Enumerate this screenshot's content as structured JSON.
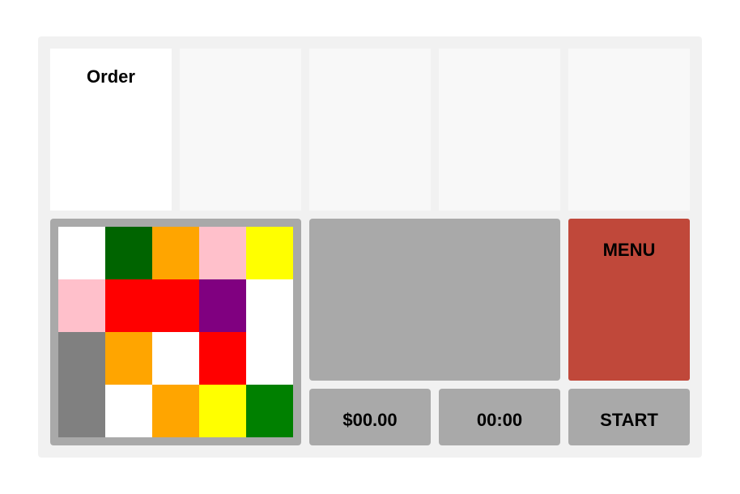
{
  "order_slots": [
    {
      "label": "Order"
    },
    {
      "label": ""
    },
    {
      "label": ""
    },
    {
      "label": ""
    },
    {
      "label": ""
    }
  ],
  "grid": {
    "rows": [
      [
        "white",
        "darkgreen",
        "orange",
        "pink",
        "yellow"
      ],
      [
        "pink",
        "red",
        "red",
        "purple",
        "white"
      ],
      [
        "gray",
        "orange",
        "white",
        "red",
        "white"
      ],
      [
        "gray",
        "white",
        "orange",
        "yellow",
        "green"
      ]
    ]
  },
  "colors": {
    "white": "#ffffff",
    "darkgreen": "#006400",
    "orange": "#ffa500",
    "pink": "#ffc0cb",
    "yellow": "#ffff00",
    "red": "#ff0000",
    "purple": "#800080",
    "gray": "#808080",
    "green": "#008000",
    "menu_accent": "#c0483a"
  },
  "controls": {
    "menu_label": "MENU",
    "money": "$00.00",
    "timer": "00:00",
    "start_label": "START"
  }
}
